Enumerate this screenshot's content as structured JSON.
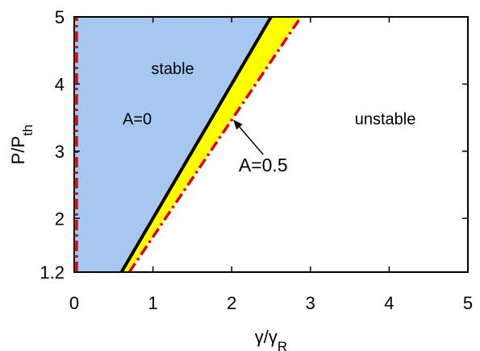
{
  "chart_data": {
    "type": "area",
    "xlabel": {
      "main": "γ/γ",
      "sub": "R"
    },
    "ylabel": {
      "main": "P/P",
      "sub": "th"
    },
    "xlim": [
      0,
      5
    ],
    "ylim": [
      1.2,
      5
    ],
    "xticks": [
      {
        "value": 0,
        "label": "0"
      },
      {
        "value": 1,
        "label": "1"
      },
      {
        "value": 2,
        "label": "2"
      },
      {
        "value": 3,
        "label": "3"
      },
      {
        "value": 4,
        "label": "4"
      },
      {
        "value": 5,
        "label": "5"
      }
    ],
    "yticks": [
      {
        "value": 1.2,
        "label": "1.2"
      },
      {
        "value": 2,
        "label": "2"
      },
      {
        "value": 3,
        "label": "3"
      },
      {
        "value": 4,
        "label": "4"
      },
      {
        "value": 5,
        "label": "5"
      }
    ],
    "series": [
      {
        "name": "A=0",
        "style": "solid",
        "color": "#000000",
        "points": [
          [
            0.6,
            1.2
          ],
          [
            2.5,
            5
          ]
        ]
      },
      {
        "name": "A=0.5",
        "style": "dashdot",
        "color": "#e00000",
        "points": [
          [
            0.7,
            1.2
          ],
          [
            2.88,
            5
          ]
        ]
      },
      {
        "style": "dashdot",
        "color": "#e00000",
        "points": [
          [
            0.03,
            1.2
          ],
          [
            0.03,
            5
          ]
        ]
      }
    ],
    "regions": [
      {
        "name": "stable",
        "color": "#a6c8f0",
        "polygon": [
          [
            0,
            1.2
          ],
          [
            0.6,
            1.2
          ],
          [
            2.5,
            5
          ],
          [
            0,
            5
          ]
        ]
      },
      {
        "name": "band",
        "color": "#ffff00",
        "polygon": [
          [
            0.6,
            1.2
          ],
          [
            0.7,
            1.2
          ],
          [
            2.88,
            5
          ],
          [
            2.5,
            5
          ]
        ]
      }
    ],
    "annotations": [
      {
        "text": "stable",
        "x": 1.25,
        "y": 4.15
      },
      {
        "text": "A=0",
        "x": 0.8,
        "y": 3.4
      },
      {
        "text": "unstable",
        "x": 3.95,
        "y": 3.4
      },
      {
        "text": "A=0.5",
        "x": 2.4,
        "y": 2.7
      }
    ],
    "arrow": {
      "from": [
        2.4,
        2.95
      ],
      "to": [
        2.02,
        3.47
      ]
    },
    "grid": false
  }
}
